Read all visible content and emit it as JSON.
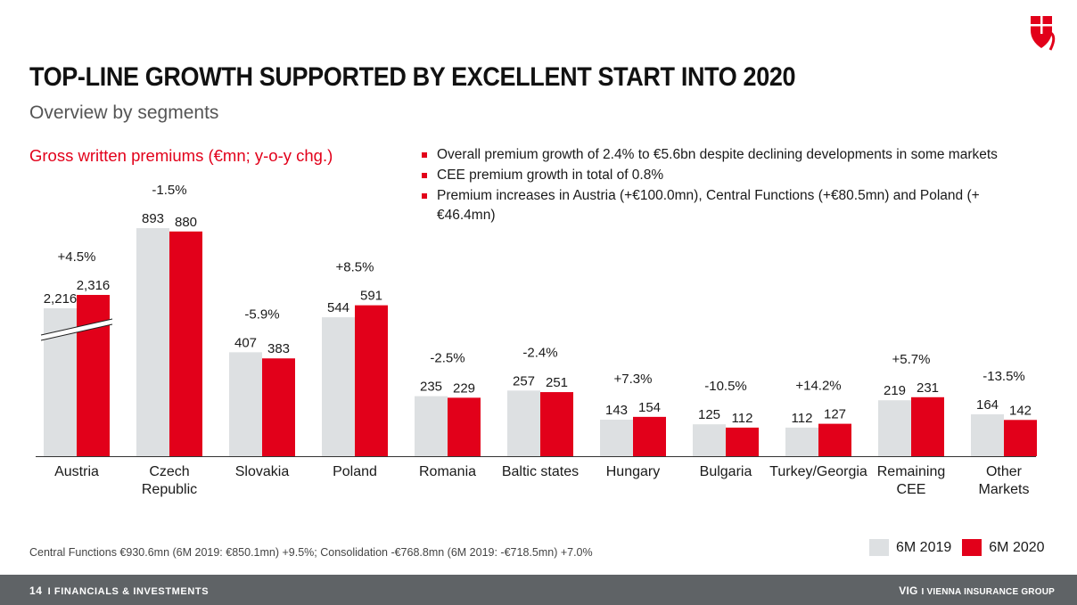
{
  "header": {
    "title": "TOP-LINE GROWTH SUPPORTED BY EXCELLENT START INTO 2020",
    "subtitle": "Overview by segments"
  },
  "bullets": [
    "Overall premium growth of 2.4% to €5.6bn despite declining developments in some markets",
    "CEE premium growth in total of 0.8%",
    "Premium increases in Austria (+€100.0mn), Central Functions (+€80.5mn) and Poland (+€46.4mn)"
  ],
  "footnote": "Central Functions €930.6mn (6M 2019: €850.1mn) +9.5%; Consolidation -€768.8mn (6M 2019: -€718.5mn) +7.0%",
  "footer": {
    "page_number": "14",
    "separator": "I",
    "section": "FINANCIALS & INVESTMENTS",
    "brand_short": "VIG",
    "brand_full": "VIENNA INSURANCE GROUP"
  },
  "colors": {
    "accent": "#e2001a",
    "series_2019": "#dde0e2",
    "footer_bg": "#5f6366"
  },
  "chart_data": {
    "type": "bar",
    "title": "Gross written premiums (€mn; y-o-y chg.)",
    "categories": [
      "Austria",
      "Czech Republic",
      "Slovakia",
      "Poland",
      "Romania",
      "Baltic states",
      "Hungary",
      "Bulgaria",
      "Turkey/Georgia",
      "Remaining CEE",
      "Other Markets"
    ],
    "category_lines": [
      [
        "Austria"
      ],
      [
        "Czech",
        "Republic"
      ],
      [
        "Slovakia"
      ],
      [
        "Poland"
      ],
      [
        "Romania"
      ],
      [
        "Baltic states"
      ],
      [
        "Hungary"
      ],
      [
        "Bulgaria"
      ],
      [
        "Turkey/Georgia"
      ],
      [
        "Remaining",
        "CEE"
      ],
      [
        "Other",
        "Markets"
      ]
    ],
    "series": [
      {
        "name": "6M 2019",
        "color": "#dde0e2",
        "values": [
          2216,
          893,
          407,
          544,
          235,
          257,
          143,
          125,
          112,
          219,
          164
        ],
        "labels": [
          "2,216",
          "893",
          "407",
          "544",
          "235",
          "257",
          "143",
          "125",
          "112",
          "219",
          "164"
        ]
      },
      {
        "name": "6M 2020",
        "color": "#e2001a",
        "values": [
          2316,
          880,
          383,
          591,
          229,
          251,
          154,
          112,
          127,
          231,
          142
        ],
        "labels": [
          "2,316",
          "880",
          "383",
          "591",
          "229",
          "251",
          "154",
          "112",
          "127",
          "231",
          "142"
        ]
      }
    ],
    "changes": [
      "+4.5%",
      "-1.5%",
      "-5.9%",
      "+8.5%",
      "-2.5%",
      "-2.4%",
      "+7.3%",
      "-10.5%",
      "+14.2%",
      "+5.7%",
      "-13.5%"
    ],
    "axis_break": {
      "category": "Austria"
    },
    "legend": "bottom-right"
  }
}
